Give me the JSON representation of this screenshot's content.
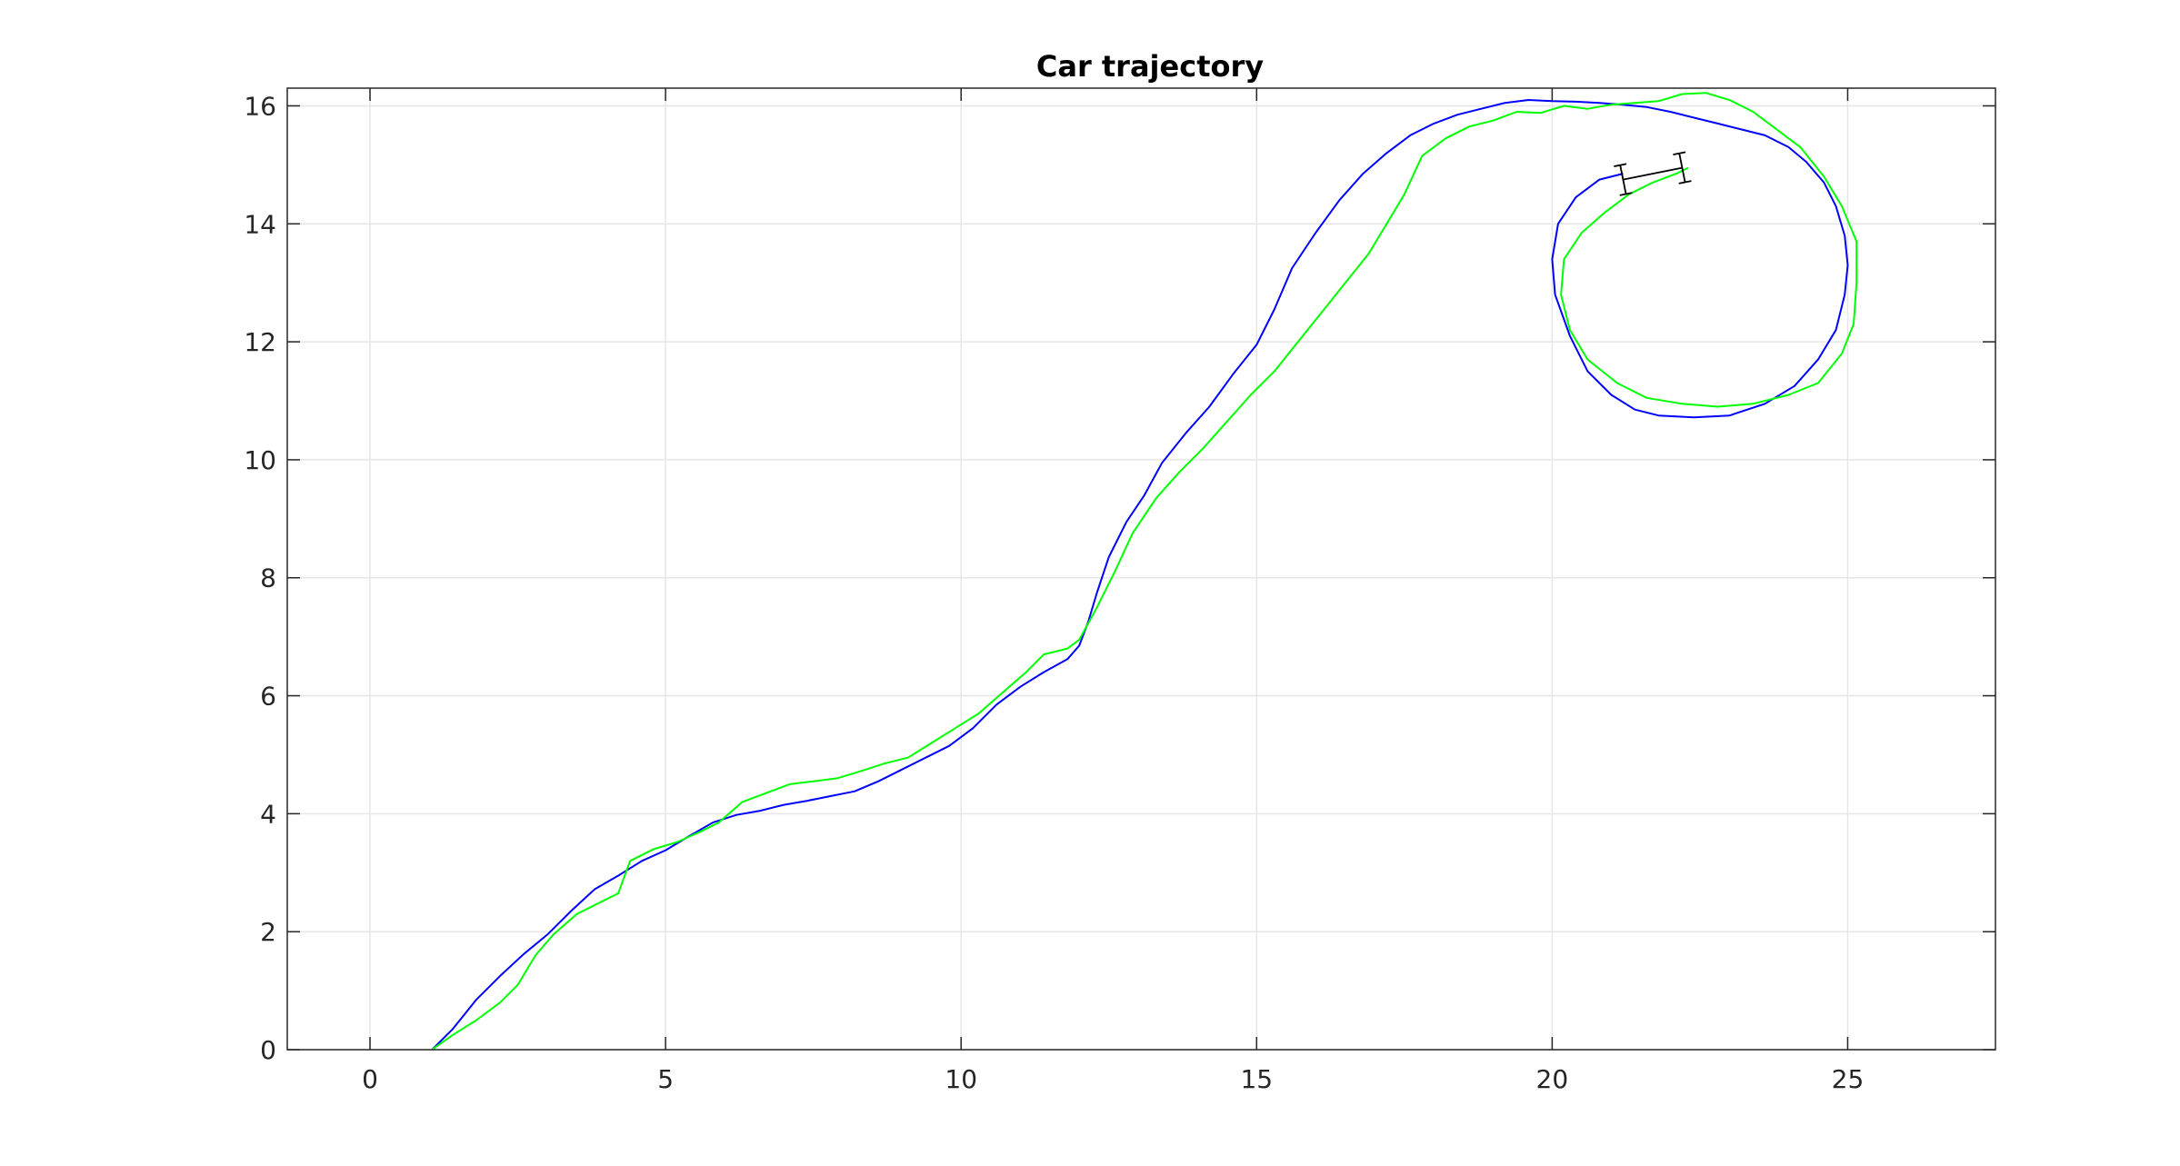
{
  "chart_data": {
    "type": "line",
    "title": "Car trajectory",
    "xlabel": "",
    "ylabel": "",
    "xlim": [
      -1.4,
      27.5
    ],
    "ylim": [
      0,
      16.3
    ],
    "xticks": [
      0,
      5,
      10,
      15,
      20,
      25
    ],
    "yticks": [
      0,
      2,
      4,
      6,
      8,
      10,
      12,
      14,
      16
    ],
    "grid": true,
    "box": true,
    "series": [
      {
        "color": "#0000ff",
        "points": [
          [
            1.05,
            0
          ],
          [
            1.4,
            0.35
          ],
          [
            1.8,
            0.85
          ],
          [
            2.2,
            1.25
          ],
          [
            2.6,
            1.62
          ],
          [
            3.0,
            1.95
          ],
          [
            3.4,
            2.35
          ],
          [
            3.8,
            2.72
          ],
          [
            4.2,
            2.95
          ],
          [
            4.6,
            3.2
          ],
          [
            5.0,
            3.38
          ],
          [
            5.4,
            3.62
          ],
          [
            5.8,
            3.85
          ],
          [
            6.2,
            3.98
          ],
          [
            6.6,
            4.05
          ],
          [
            7.0,
            4.15
          ],
          [
            7.4,
            4.22
          ],
          [
            7.8,
            4.3
          ],
          [
            8.2,
            4.38
          ],
          [
            8.6,
            4.55
          ],
          [
            9.0,
            4.75
          ],
          [
            9.4,
            4.95
          ],
          [
            9.8,
            5.15
          ],
          [
            10.2,
            5.45
          ],
          [
            10.6,
            5.85
          ],
          [
            11.0,
            6.15
          ],
          [
            11.4,
            6.4
          ],
          [
            11.8,
            6.62
          ],
          [
            12.0,
            6.85
          ],
          [
            12.15,
            7.25
          ],
          [
            12.3,
            7.75
          ],
          [
            12.5,
            8.35
          ],
          [
            12.8,
            8.95
          ],
          [
            13.1,
            9.4
          ],
          [
            13.4,
            9.95
          ],
          [
            13.8,
            10.45
          ],
          [
            14.2,
            10.9
          ],
          [
            14.6,
            11.45
          ],
          [
            15.0,
            11.95
          ],
          [
            15.3,
            12.55
          ],
          [
            15.6,
            13.25
          ],
          [
            16.0,
            13.85
          ],
          [
            16.4,
            14.4
          ],
          [
            16.8,
            14.85
          ],
          [
            17.2,
            15.2
          ],
          [
            17.6,
            15.5
          ],
          [
            18.0,
            15.7
          ],
          [
            18.4,
            15.85
          ],
          [
            18.8,
            15.95
          ],
          [
            19.2,
            16.05
          ],
          [
            19.6,
            16.1
          ],
          [
            20.0,
            16.08
          ],
          [
            20.4,
            16.07
          ],
          [
            20.8,
            16.05
          ],
          [
            21.2,
            16.02
          ],
          [
            21.6,
            15.98
          ],
          [
            22.0,
            15.9
          ],
          [
            22.4,
            15.8
          ],
          [
            22.8,
            15.7
          ],
          [
            23.2,
            15.6
          ],
          [
            23.6,
            15.5
          ],
          [
            24.0,
            15.3
          ],
          [
            24.3,
            15.05
          ],
          [
            24.6,
            14.7
          ],
          [
            24.8,
            14.3
          ],
          [
            24.95,
            13.8
          ],
          [
            25.0,
            13.3
          ],
          [
            24.95,
            12.8
          ],
          [
            24.8,
            12.2
          ],
          [
            24.5,
            11.7
          ],
          [
            24.1,
            11.25
          ],
          [
            23.6,
            10.95
          ],
          [
            23.0,
            10.75
          ],
          [
            22.4,
            10.72
          ],
          [
            21.8,
            10.75
          ],
          [
            21.4,
            10.85
          ],
          [
            21.0,
            11.1
          ],
          [
            20.6,
            11.5
          ],
          [
            20.3,
            12.1
          ],
          [
            20.05,
            12.8
          ],
          [
            20.0,
            13.4
          ],
          [
            20.1,
            14.0
          ],
          [
            20.4,
            14.45
          ],
          [
            20.8,
            14.75
          ],
          [
            21.2,
            14.85
          ]
        ]
      },
      {
        "color": "#00ff00",
        "points": [
          [
            1.05,
            0
          ],
          [
            1.4,
            0.25
          ],
          [
            1.8,
            0.5
          ],
          [
            2.2,
            0.8
          ],
          [
            2.5,
            1.1
          ],
          [
            2.8,
            1.6
          ],
          [
            3.1,
            1.95
          ],
          [
            3.5,
            2.3
          ],
          [
            3.9,
            2.5
          ],
          [
            4.2,
            2.65
          ],
          [
            4.4,
            3.2
          ],
          [
            4.8,
            3.4
          ],
          [
            5.2,
            3.52
          ],
          [
            5.6,
            3.7
          ],
          [
            5.9,
            3.85
          ],
          [
            6.3,
            4.2
          ],
          [
            6.7,
            4.35
          ],
          [
            7.1,
            4.5
          ],
          [
            7.5,
            4.55
          ],
          [
            7.9,
            4.6
          ],
          [
            8.3,
            4.72
          ],
          [
            8.7,
            4.85
          ],
          [
            9.1,
            4.95
          ],
          [
            9.5,
            5.2
          ],
          [
            9.9,
            5.45
          ],
          [
            10.3,
            5.7
          ],
          [
            10.7,
            6.05
          ],
          [
            11.1,
            6.4
          ],
          [
            11.4,
            6.7
          ],
          [
            11.8,
            6.8
          ],
          [
            12.0,
            6.95
          ],
          [
            12.3,
            7.5
          ],
          [
            12.6,
            8.1
          ],
          [
            12.9,
            8.75
          ],
          [
            13.3,
            9.35
          ],
          [
            13.7,
            9.8
          ],
          [
            14.1,
            10.2
          ],
          [
            14.5,
            10.65
          ],
          [
            14.9,
            11.1
          ],
          [
            15.3,
            11.5
          ],
          [
            15.7,
            12.0
          ],
          [
            16.1,
            12.5
          ],
          [
            16.5,
            13.0
          ],
          [
            16.9,
            13.5
          ],
          [
            17.2,
            14.0
          ],
          [
            17.5,
            14.5
          ],
          [
            17.8,
            15.15
          ],
          [
            18.2,
            15.45
          ],
          [
            18.6,
            15.65
          ],
          [
            19.0,
            15.75
          ],
          [
            19.4,
            15.9
          ],
          [
            19.8,
            15.88
          ],
          [
            20.2,
            16.0
          ],
          [
            20.6,
            15.95
          ],
          [
            21.0,
            16.02
          ],
          [
            21.4,
            16.05
          ],
          [
            21.8,
            16.08
          ],
          [
            22.2,
            16.2
          ],
          [
            22.6,
            16.22
          ],
          [
            23.0,
            16.1
          ],
          [
            23.4,
            15.9
          ],
          [
            23.8,
            15.6
          ],
          [
            24.2,
            15.3
          ],
          [
            24.6,
            14.8
          ],
          [
            24.9,
            14.3
          ],
          [
            25.15,
            13.7
          ],
          [
            25.15,
            13.0
          ],
          [
            25.1,
            12.3
          ],
          [
            24.9,
            11.8
          ],
          [
            24.5,
            11.3
          ],
          [
            24.0,
            11.1
          ],
          [
            23.4,
            10.95
          ],
          [
            22.8,
            10.9
          ],
          [
            22.2,
            10.95
          ],
          [
            21.6,
            11.05
          ],
          [
            21.1,
            11.3
          ],
          [
            20.6,
            11.7
          ],
          [
            20.3,
            12.2
          ],
          [
            20.15,
            12.8
          ],
          [
            20.2,
            13.4
          ],
          [
            20.5,
            13.85
          ],
          [
            20.9,
            14.2
          ],
          [
            21.3,
            14.5
          ],
          [
            21.7,
            14.7
          ],
          [
            22.1,
            14.85
          ],
          [
            22.3,
            14.95
          ]
        ]
      }
    ],
    "car_marker": {
      "color": "#000000",
      "rear": [
        21.2,
        14.75
      ],
      "front": [
        22.2,
        14.95
      ],
      "axle_half_width": 0.25
    }
  }
}
